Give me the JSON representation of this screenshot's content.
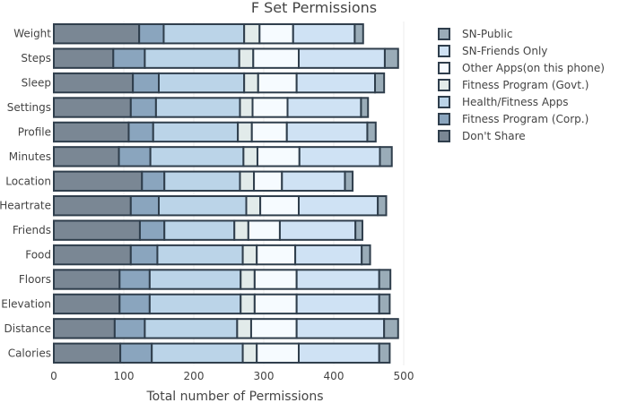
{
  "chart_data": {
    "type": "bar",
    "orientation": "horizontal",
    "stacked": true,
    "title": "F Set Permissions",
    "xlabel": "Total number of Permissions",
    "ylabel": "",
    "xlim": [
      0,
      500
    ],
    "xticks": [
      0,
      100,
      200,
      300,
      400,
      500
    ],
    "grid": true,
    "legend_position": "top-right",
    "categories": [
      "Calories",
      "Distance",
      "Elevation",
      "Floors",
      "Food",
      "Friends",
      "Heartrate",
      "Location",
      "Minutes",
      "Profile",
      "Settings",
      "Sleep",
      "Steps",
      "Weight"
    ],
    "series": [
      {
        "name": "Don't Share",
        "color": "#7a8794",
        "values": [
          95,
          87,
          94,
          94,
          110,
          123,
          110,
          126,
          93,
          107,
          110,
          113,
          85,
          122
        ]
      },
      {
        "name": "Fitness Program (Corp.)",
        "color": "#8aa5be",
        "values": [
          45,
          43,
          43,
          43,
          38,
          35,
          40,
          32,
          45,
          35,
          36,
          37,
          45,
          35
        ]
      },
      {
        "name": "Health/Fitness Apps",
        "color": "#bbd4e8",
        "values": [
          130,
          132,
          130,
          130,
          122,
          100,
          125,
          108,
          133,
          121,
          120,
          122,
          135,
          115
        ]
      },
      {
        "name": "Fitness Program (Govt.)",
        "color": "#e2ebea",
        "values": [
          20,
          20,
          20,
          20,
          20,
          20,
          20,
          20,
          20,
          20,
          18,
          20,
          20,
          22
        ]
      },
      {
        "name": "Other Apps(on this phone)",
        "color": "#f6fbff",
        "values": [
          60,
          65,
          60,
          60,
          55,
          45,
          55,
          40,
          60,
          50,
          50,
          55,
          65,
          48
        ]
      },
      {
        "name": "SN-Friends Only",
        "color": "#cfe2f4",
        "values": [
          115,
          125,
          118,
          118,
          95,
          108,
          113,
          90,
          115,
          115,
          105,
          112,
          123,
          88
        ]
      },
      {
        "name": "SN-Public",
        "color": "#9aacb8",
        "values": [
          15,
          20,
          15,
          16,
          12,
          10,
          12,
          11,
          17,
          12,
          10,
          13,
          19,
          12
        ]
      }
    ]
  }
}
